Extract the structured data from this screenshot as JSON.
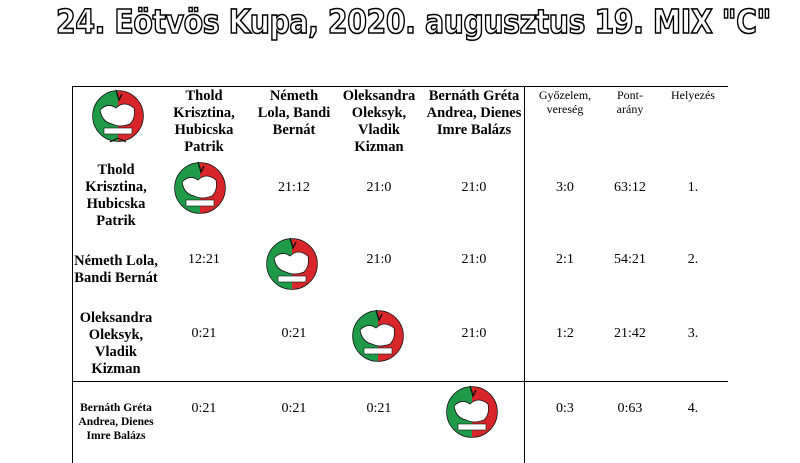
{
  "title": "24. Eötvös Kupa, 2020. augusztus 19. MIX \"C\"",
  "headers": {
    "cols": [
      "Thold Krisztina, Hubicska Patrik",
      "Németh Lola, Bandi Bernát",
      "Oleksandra Oleksyk, Vladik Kizman",
      "Bernáth Gréta Andrea, Dienes Imre Balázs"
    ],
    "wins": "Győzelem, vereség",
    "points": "Pont-arány",
    "rank": "Helyezés"
  },
  "rows": [
    {
      "name": "Thold Krisztina, Hubicska Patrik",
      "results": [
        "",
        "21:12",
        "21:0",
        "21:0"
      ],
      "wins": "3:0",
      "points": "63:12",
      "rank": "1."
    },
    {
      "name": "Németh Lola, Bandi Bernát",
      "results": [
        "12:21",
        "",
        "21:0",
        "21:0"
      ],
      "wins": "2:1",
      "points": "54:21",
      "rank": "2."
    },
    {
      "name": "Oleksandra Oleksyk, Vladik Kizman",
      "results": [
        "0:21",
        "0:21",
        "",
        "21:0"
      ],
      "wins": "1:2",
      "points": "21:42",
      "rank": "3."
    },
    {
      "name": "Bernáth Gréta Andrea, Dienes Imre Balázs",
      "results": [
        "0:21",
        "0:21",
        "0:21",
        ""
      ],
      "wins": "0:3",
      "points": "0:63",
      "rank": "4."
    }
  ],
  "colors": {
    "emblem_red": "#d9262b",
    "emblem_green": "#1f9a48"
  }
}
